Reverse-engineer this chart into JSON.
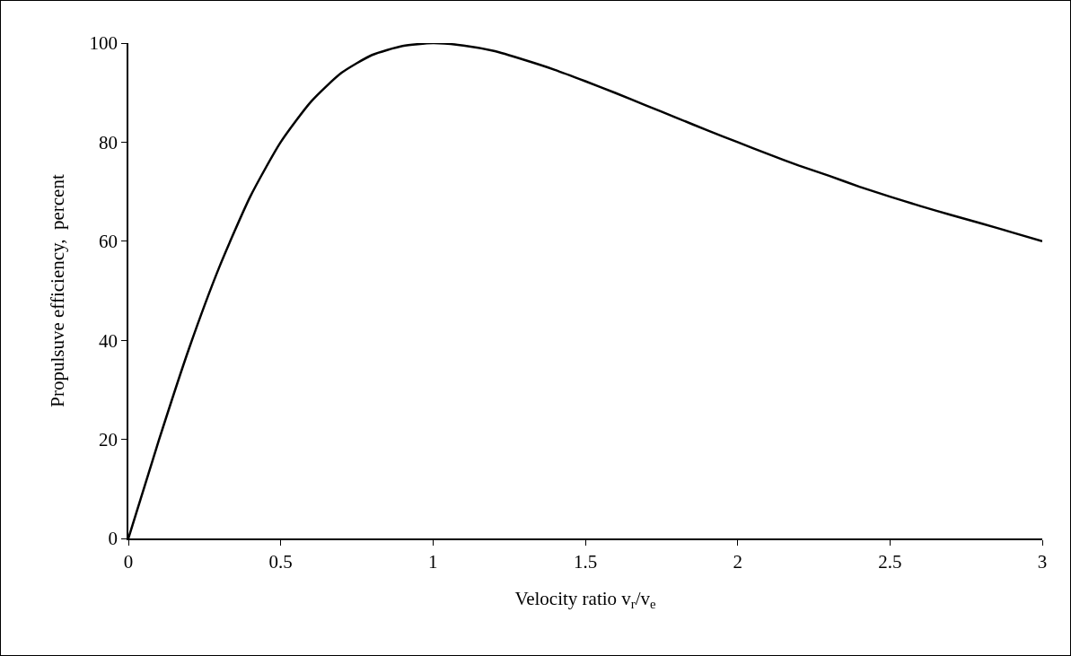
{
  "chart_data": {
    "type": "line",
    "xlabel": "Velocity ratio v$_{r}$/v$_{e}$",
    "ylabel": "Propulsuve efficiency,  percent",
    "x": [
      0,
      0.1,
      0.2,
      0.3,
      0.4,
      0.5,
      0.6,
      0.7,
      0.8,
      0.9,
      1,
      1.1,
      1.2,
      1.3,
      1.4,
      1.5,
      1.6,
      1.7,
      1.8,
      1.9,
      2,
      2.1,
      2.2,
      2.3,
      2.4,
      2.5,
      2.6,
      2.7,
      2.8,
      2.9,
      3
    ],
    "series": [
      {
        "color": "#000000",
        "values": [
          0,
          19.8,
          38.5,
          55,
          69,
          80,
          88.2,
          94,
          97.6,
          99.4,
          100,
          99.5,
          98.4,
          96.6,
          94.6,
          92.3,
          89.9,
          87.4,
          84.9,
          82.4,
          80,
          77.6,
          75.3,
          73.2,
          71,
          69,
          67.1,
          65.3,
          63.6,
          61.8,
          60
        ]
      }
    ],
    "xlim": [
      0,
      3
    ],
    "xticks": [
      0,
      0.5,
      1,
      1.5,
      2,
      2.5,
      3
    ],
    "ylim": [
      0,
      100
    ],
    "yticks": [
      0,
      20,
      40,
      60,
      80,
      100
    ],
    "grid": false,
    "marker": "none",
    "line_style": "solid"
  }
}
